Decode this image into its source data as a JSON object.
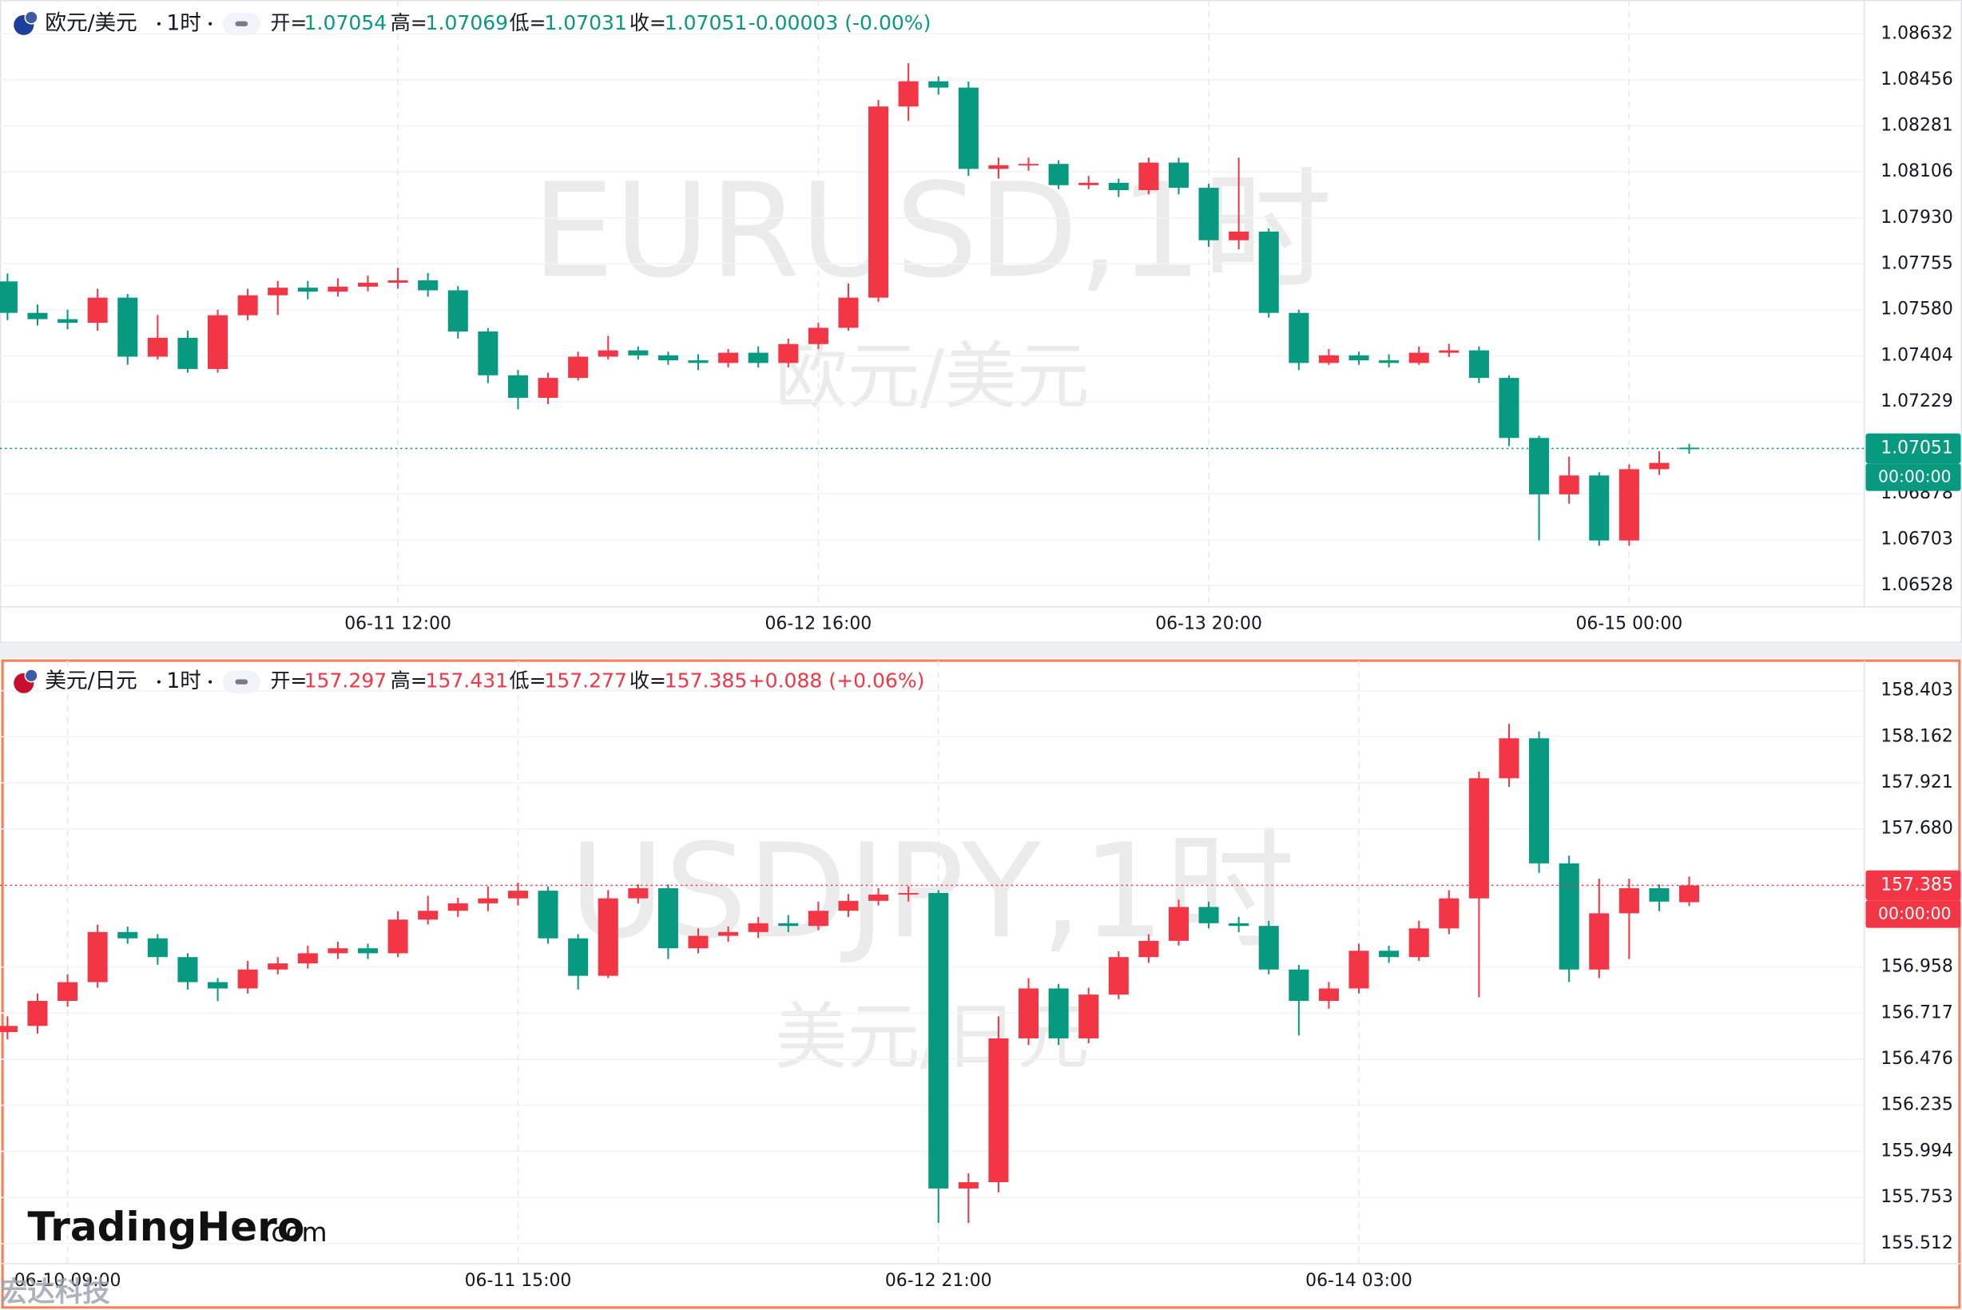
{
  "chart_data": [
    {
      "type": "candlestick",
      "symbol": "欧元/美元",
      "interval": "1时",
      "watermark": "EURUSD,1时",
      "watermark_sub": "欧元/美元",
      "ohlc_labels": [
        "开=",
        "高=",
        "低=",
        "收="
      ],
      "change": "-0.00003 (-0.00%)",
      "trend": "down",
      "countdown": "00:00:00",
      "up_color": "#f23645",
      "down_color": "#089981",
      "grid": true,
      "ylim": [
        1.06447,
        1.08761
      ],
      "yticks": [
        1.08632,
        1.08456,
        1.08281,
        1.08106,
        {
          "value": 1.0793,
          "label": "1.07930"
        },
        1.07755,
        {
          "value": 1.0758,
          "label": "1.07580"
        },
        1.07404,
        1.07229,
        1.06878,
        1.06703,
        1.06528
      ],
      "categories": [
        null,
        null,
        null,
        null,
        null,
        null,
        null,
        null,
        null,
        null,
        null,
        null,
        null,
        "06-11 12:00",
        null,
        null,
        null,
        null,
        null,
        null,
        null,
        null,
        null,
        null,
        null,
        null,
        null,
        "06-12 16:00",
        null,
        null,
        null,
        null,
        null,
        null,
        null,
        null,
        null,
        null,
        null,
        null,
        "06-13 20:00",
        null,
        null,
        null,
        null,
        null,
        null,
        null,
        null,
        null,
        null,
        null,
        null,
        null,
        "06-15 00:00",
        null,
        null
      ],
      "ohlc": [
        [
          1.07688,
          1.07718,
          1.0754,
          1.07568
        ],
        [
          1.07568,
          1.076,
          1.0752,
          1.07544
        ],
        [
          1.07544,
          1.0758,
          1.07505,
          1.0753
        ],
        [
          1.0753,
          1.0766,
          1.075,
          1.07626
        ],
        [
          1.07626,
          1.0764,
          1.0737,
          1.07401
        ],
        [
          1.07401,
          1.0756,
          1.0739,
          1.07473
        ],
        [
          1.07473,
          1.075,
          1.0734,
          1.07354
        ],
        [
          1.07354,
          1.0758,
          1.0734,
          1.07559
        ],
        [
          1.07559,
          1.0766,
          1.0754,
          1.07635
        ],
        [
          1.07635,
          1.0769,
          1.0756,
          1.07664
        ],
        [
          1.07664,
          1.0769,
          1.0762,
          1.07649
        ],
        [
          1.07649,
          1.077,
          1.0763,
          1.07668
        ],
        [
          1.07668,
          1.0771,
          1.0765,
          1.07683
        ],
        [
          1.07683,
          1.0774,
          1.0766,
          1.07692
        ],
        [
          1.07692,
          1.0772,
          1.0763,
          1.07654
        ],
        [
          1.07654,
          1.0767,
          1.0747,
          1.07497
        ],
        [
          1.07497,
          1.0751,
          1.073,
          1.0733
        ],
        [
          1.0733,
          1.0735,
          1.072,
          1.07244
        ],
        [
          1.07244,
          1.0734,
          1.0722,
          1.0732
        ],
        [
          1.0732,
          1.0742,
          1.0731,
          1.07401
        ],
        [
          1.07401,
          1.0748,
          1.0739,
          1.07425
        ],
        [
          1.07425,
          1.0744,
          1.0739,
          1.07406
        ],
        [
          1.07406,
          1.0742,
          1.0737,
          1.07387
        ],
        [
          1.07387,
          1.0741,
          1.0735,
          1.07377
        ],
        [
          1.07377,
          1.0743,
          1.0736,
          1.07416
        ],
        [
          1.07416,
          1.0744,
          1.0736,
          1.07377
        ],
        [
          1.07377,
          1.0747,
          1.0736,
          1.07449
        ],
        [
          1.07449,
          1.0753,
          1.0743,
          1.07511
        ],
        [
          1.07511,
          1.0768,
          1.075,
          1.07626
        ],
        [
          1.07626,
          1.0838,
          1.0761,
          1.08355
        ],
        [
          1.08355,
          1.0852,
          1.083,
          1.08451
        ],
        [
          1.08451,
          1.0847,
          1.084,
          1.08427
        ],
        [
          1.08427,
          1.0845,
          1.0809,
          1.08117
        ],
        [
          1.08117,
          1.0816,
          1.0808,
          1.08131
        ],
        [
          1.08131,
          1.0816,
          1.0811,
          1.08136
        ],
        [
          1.08136,
          1.0815,
          1.0804,
          1.08055
        ],
        [
          1.08055,
          1.0809,
          1.0804,
          1.08064
        ],
        [
          1.08064,
          1.0808,
          1.0801,
          1.08036
        ],
        [
          1.08036,
          1.0816,
          1.0802,
          1.08141
        ],
        [
          1.08141,
          1.0816,
          1.0802,
          1.08045
        ],
        [
          1.08045,
          1.0806,
          1.0782,
          1.07845
        ],
        [
          1.07845,
          1.0816,
          1.0781,
          1.07878
        ],
        [
          1.07878,
          1.0789,
          1.0755,
          1.07568
        ],
        [
          1.07568,
          1.0758,
          1.0735,
          1.07377
        ],
        [
          1.07377,
          1.0743,
          1.0737,
          1.07406
        ],
        [
          1.07406,
          1.0742,
          1.0737,
          1.07387
        ],
        [
          1.07387,
          1.0741,
          1.0736,
          1.07377
        ],
        [
          1.07377,
          1.0744,
          1.0737,
          1.07416
        ],
        [
          1.07416,
          1.0745,
          1.074,
          1.07425
        ],
        [
          1.07425,
          1.0744,
          1.073,
          1.0732
        ],
        [
          1.0732,
          1.0733,
          1.0706,
          1.07091
        ],
        [
          1.07091,
          1.071,
          1.067,
          1.06876
        ],
        [
          1.06876,
          1.0702,
          1.0684,
          1.06948
        ],
        [
          1.06948,
          1.0696,
          1.0668,
          1.067
        ],
        [
          1.067,
          1.0699,
          1.0668,
          1.06972
        ],
        [
          1.06972,
          1.0704,
          1.0695,
          1.06996
        ],
        [
          1.07054,
          1.07069,
          1.07031,
          1.07051
        ]
      ]
    },
    {
      "type": "candlestick",
      "symbol": "美元/日元",
      "interval": "1时",
      "watermark": "USDJPY,1时",
      "watermark_sub": "美元/日元",
      "ohlc_labels": [
        "开=",
        "高=",
        "低=",
        "收="
      ],
      "change": "+0.088 (+0.06%)",
      "trend": "up",
      "countdown": "00:00:00",
      "up_color": "#f23645",
      "down_color": "#089981",
      "grid": true,
      "ylim": [
        155.407,
        158.56
      ],
      "yticks": [
        158.403,
        158.162,
        157.921,
        {
          "value": 157.68,
          "label": "157.680"
        },
        156.958,
        156.717,
        156.476,
        156.235,
        155.994,
        155.753,
        155.512
      ],
      "categories": [
        null,
        null,
        "06-10 09:00",
        null,
        null,
        null,
        null,
        null,
        null,
        null,
        null,
        null,
        null,
        null,
        null,
        null,
        null,
        "06-11 15:00",
        null,
        null,
        null,
        null,
        null,
        null,
        null,
        null,
        null,
        null,
        null,
        null,
        null,
        "06-12 21:00",
        null,
        null,
        null,
        null,
        null,
        null,
        null,
        null,
        null,
        null,
        null,
        null,
        null,
        "06-14 03:00",
        null,
        null,
        null,
        null,
        null,
        null,
        null,
        null,
        null,
        null,
        null
      ],
      "ohlc": [
        [
          156.618,
          156.7,
          156.58,
          156.65
        ],
        [
          156.65,
          156.82,
          156.61,
          156.781
        ],
        [
          156.781,
          156.92,
          156.75,
          156.879
        ],
        [
          156.879,
          157.18,
          156.85,
          157.141
        ],
        [
          157.141,
          157.17,
          157.08,
          157.108
        ],
        [
          157.108,
          157.13,
          156.97,
          157.01
        ],
        [
          157.01,
          157.03,
          156.84,
          156.879
        ],
        [
          156.879,
          156.9,
          156.78,
          156.846
        ],
        [
          156.846,
          156.99,
          156.82,
          156.945
        ],
        [
          156.945,
          157.01,
          156.92,
          156.977
        ],
        [
          156.977,
          157.07,
          156.95,
          157.03
        ],
        [
          157.03,
          157.09,
          157.0,
          157.056
        ],
        [
          157.056,
          157.08,
          157.0,
          157.03
        ],
        [
          157.03,
          157.25,
          157.01,
          157.206
        ],
        [
          157.206,
          157.33,
          157.18,
          157.252
        ],
        [
          157.252,
          157.32,
          157.22,
          157.291
        ],
        [
          157.291,
          157.38,
          157.25,
          157.317
        ],
        [
          157.317,
          157.4,
          157.28,
          157.357
        ],
        [
          157.357,
          157.38,
          157.08,
          157.108
        ],
        [
          157.108,
          157.13,
          156.84,
          156.912
        ],
        [
          156.912,
          157.36,
          156.9,
          157.317
        ],
        [
          157.317,
          157.39,
          157.29,
          157.37
        ],
        [
          157.37,
          157.39,
          157.0,
          157.056
        ],
        [
          157.056,
          157.16,
          157.03,
          157.121
        ],
        [
          157.121,
          157.17,
          157.09,
          157.141
        ],
        [
          157.141,
          157.22,
          157.11,
          157.187
        ],
        [
          157.187,
          157.23,
          157.14,
          157.173
        ],
        [
          157.173,
          157.3,
          157.15,
          157.252
        ],
        [
          157.252,
          157.34,
          157.22,
          157.304
        ],
        [
          157.304,
          157.37,
          157.28,
          157.337
        ],
        [
          157.337,
          157.38,
          157.3,
          157.345
        ],
        [
          157.345,
          157.36,
          155.62,
          155.8
        ],
        [
          155.8,
          155.88,
          155.62,
          155.833
        ],
        [
          155.833,
          156.7,
          155.78,
          156.585
        ],
        [
          156.585,
          156.9,
          156.55,
          156.846
        ],
        [
          156.846,
          156.87,
          156.55,
          156.585
        ],
        [
          156.585,
          156.85,
          156.56,
          156.814
        ],
        [
          156.814,
          157.04,
          156.79,
          157.01
        ],
        [
          157.01,
          157.13,
          156.98,
          157.095
        ],
        [
          157.095,
          157.31,
          157.07,
          157.272
        ],
        [
          157.272,
          157.3,
          157.16,
          157.187
        ],
        [
          157.187,
          157.22,
          157.14,
          157.173
        ],
        [
          157.173,
          157.2,
          156.92,
          156.945
        ],
        [
          156.945,
          156.97,
          156.6,
          156.781
        ],
        [
          156.781,
          156.88,
          156.74,
          156.846
        ],
        [
          156.846,
          157.08,
          156.82,
          157.043
        ],
        [
          157.043,
          157.07,
          156.98,
          157.01
        ],
        [
          157.01,
          157.2,
          156.99,
          157.16
        ],
        [
          157.16,
          157.36,
          157.13,
          157.317
        ],
        [
          157.317,
          157.98,
          156.8,
          157.945
        ],
        [
          157.945,
          158.23,
          157.9,
          158.154
        ],
        [
          158.154,
          158.19,
          157.45,
          157.5
        ],
        [
          157.5,
          157.54,
          156.88,
          156.945
        ],
        [
          156.945,
          157.42,
          156.9,
          157.239
        ],
        [
          157.239,
          157.42,
          157.0,
          157.37
        ],
        [
          157.37,
          157.39,
          157.25,
          157.3
        ],
        [
          157.297,
          157.431,
          157.277,
          157.385
        ]
      ]
    }
  ],
  "branding": {
    "logo": "TradingHero",
    "domain": ".com",
    "watermark": "宏达科技"
  }
}
